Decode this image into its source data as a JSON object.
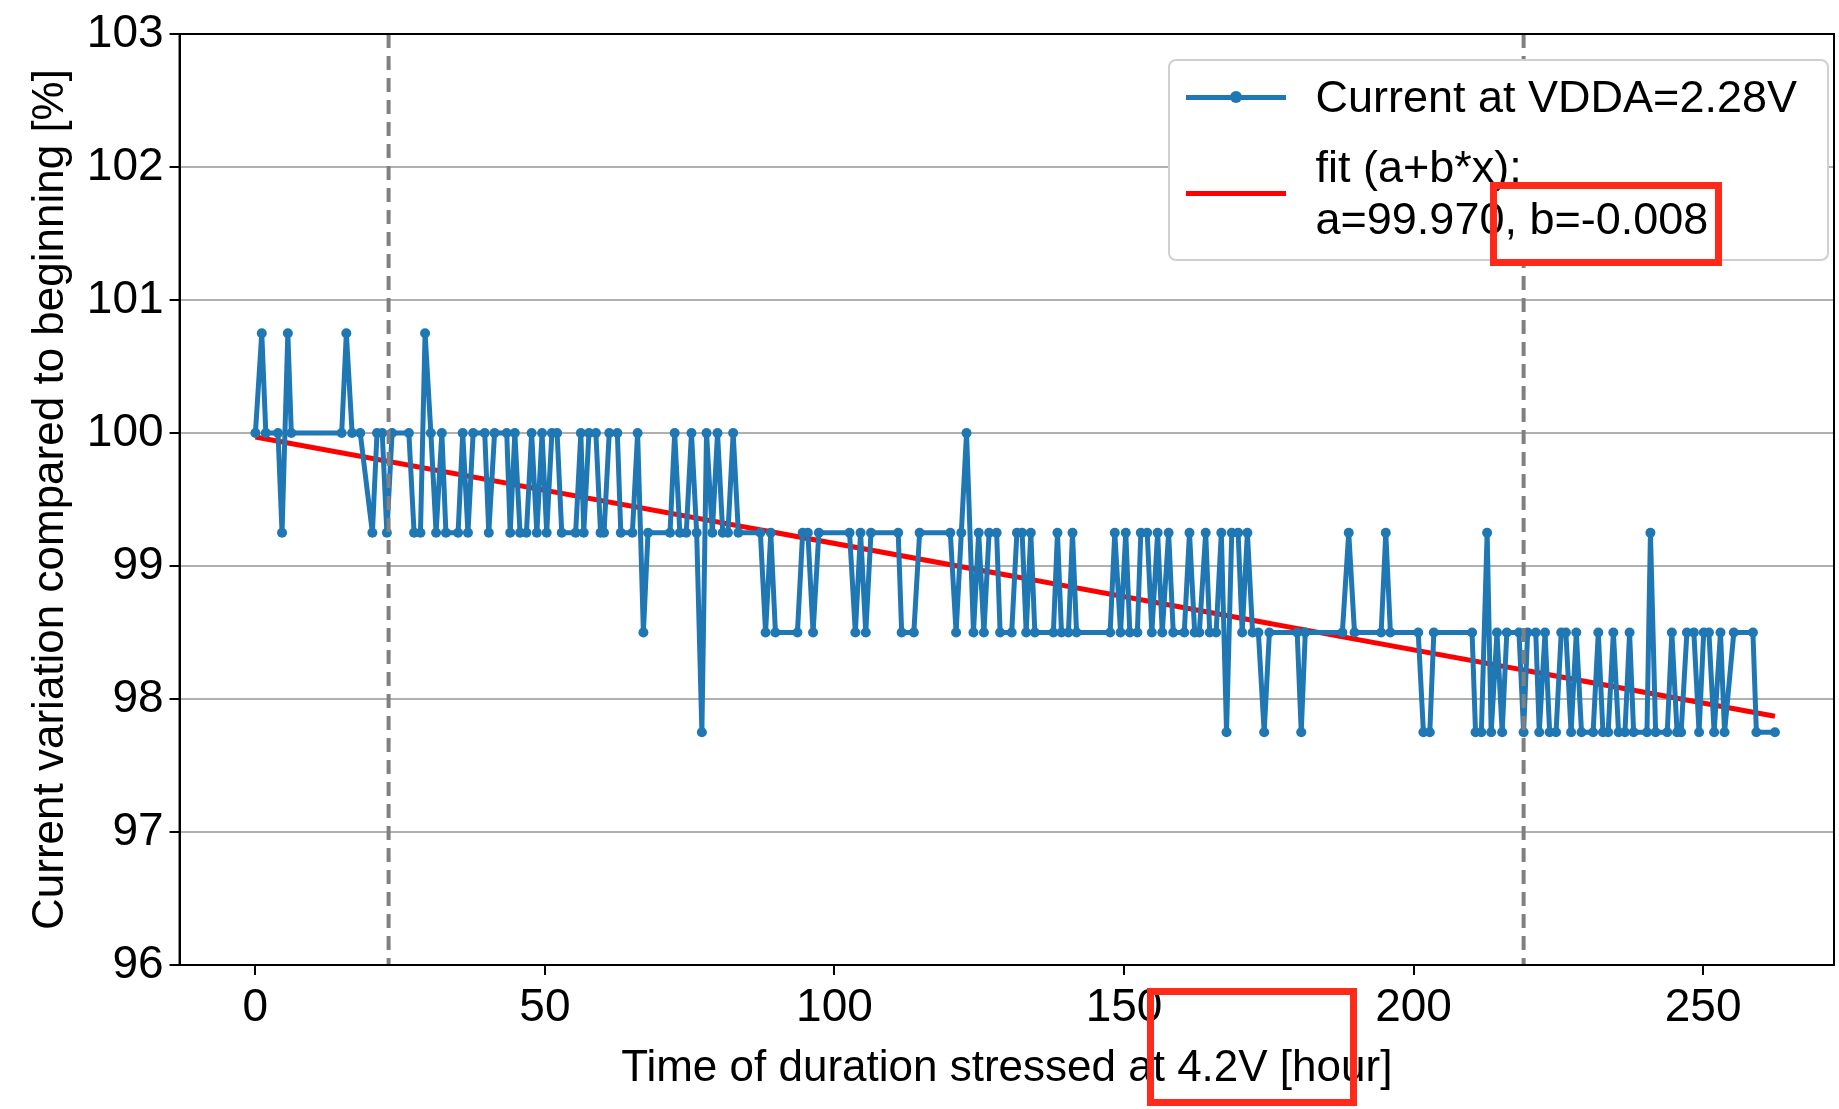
{
  "chart_data": {
    "type": "line",
    "xlabel": "Time of duration stressed at 4.2V [hour]",
    "ylabel": "Current variation compared to beginning [%]",
    "xlim": [
      -13.1,
      272.6
    ],
    "ylim": [
      96,
      103
    ],
    "xticks": [
      0,
      50,
      100,
      150,
      200,
      250
    ],
    "yticks": [
      96,
      97,
      98,
      99,
      100,
      101,
      102,
      103
    ],
    "grid": "y",
    "legend": "top right",
    "ref_lines": [
      {
        "axis": "x",
        "value": 23,
        "color": "#808080",
        "line_style": "dashed"
      },
      {
        "axis": "x",
        "value": 219,
        "color": "#808080",
        "line_style": "dashed"
      }
    ],
    "series": [
      {
        "name": "Current at VDDA=2.28V",
        "color": "#1f77b4",
        "marker": "circle",
        "x": [
          0,
          1.1,
          1.8,
          3.9,
          4.6,
          5.6,
          6.2,
          14.9,
          15.7,
          16.7,
          18.1,
          20.2,
          21.0,
          21.9,
          22.7,
          23.6,
          26.5,
          27.4,
          28.5,
          29.3,
          30.3,
          31.2,
          32.2,
          32.9,
          35.0,
          35.8,
          36.7,
          37.6,
          39.6,
          40.3,
          41.3,
          43.4,
          44.0,
          44.8,
          45.7,
          46.8,
          47.7,
          48.6,
          49.5,
          50.3,
          51.2,
          52.1,
          52.9,
          55.3,
          56.2,
          56.7,
          57.6,
          58.8,
          59.6,
          60.2,
          61.1,
          62.5,
          63.1,
          65.1,
          66.0,
          67.0,
          67.8,
          71.6,
          72.4,
          73.3,
          74.4,
          75.3,
          76.2,
          77.1,
          77.9,
          78.9,
          79.8,
          80.7,
          81.6,
          82.5,
          83.4,
          87.2,
          88.1,
          89.0,
          89.8,
          93.6,
          94.5,
          95.4,
          96.3,
          97.3,
          102.6,
          103.6,
          104.5,
          105.4,
          106.3,
          111.0,
          111.6,
          113.7,
          114.7,
          120.0,
          121.0,
          121.9,
          122.8,
          124.0,
          124.9,
          125.8,
          126.7,
          128.0,
          128.6,
          130.6,
          131.5,
          132.4,
          133.1,
          133.9,
          134.6,
          137.8,
          138.5,
          139.2,
          140.4,
          141.1,
          141.8,
          147.6,
          148.4,
          149.4,
          150.3,
          151.0,
          152.3,
          152.9,
          154.0,
          154.8,
          155.8,
          156.6,
          157.7,
          158.5,
          160.4,
          161.3,
          162.2,
          163.0,
          164.1,
          164.8,
          165.9,
          166.8,
          167.7,
          168.6,
          169.7,
          170.4,
          171.3,
          172.2,
          173.2,
          174.2,
          175.1,
          179.9,
          180.6,
          181.3,
          187.7,
          188.8,
          189.8,
          194.4,
          195.2,
          196.0,
          200.8,
          201.7,
          202.8,
          203.5,
          210.1,
          210.7,
          211.7,
          212.7,
          213.4,
          214.4,
          215.3,
          216.1,
          218.2,
          219.0,
          219.7,
          221.1,
          221.7,
          222.7,
          223.5,
          224.6,
          225.5,
          226.3,
          227.2,
          228.1,
          229.0,
          231.0,
          231.9,
          232.7,
          233.6,
          234.5,
          235.4,
          236.5,
          237.3,
          238.0,
          240.3,
          240.9,
          241.8,
          243.8,
          244.6,
          245.5,
          246.2,
          247.2,
          248.4,
          249.3,
          250.1,
          251.0,
          251.9,
          253.0,
          253.7,
          255.3,
          258.6,
          259.2,
          262.4
        ],
        "values": [
          100,
          100.75,
          100,
          100,
          99.25,
          100.75,
          100,
          100,
          100.75,
          100,
          100,
          99.25,
          100,
          100,
          99.25,
          100,
          100,
          99.25,
          99.25,
          100.75,
          100,
          99.25,
          100,
          99.25,
          99.25,
          100,
          99.25,
          100,
          100,
          99.25,
          100,
          100,
          99.25,
          100,
          99.25,
          99.25,
          100,
          99.25,
          100,
          99.25,
          100,
          100,
          99.25,
          99.25,
          100,
          99.25,
          100,
          100,
          99.25,
          99.25,
          100,
          100,
          99.25,
          99.25,
          100,
          98.5,
          99.25,
          99.25,
          100,
          99.25,
          99.25,
          100,
          99.25,
          97.75,
          100,
          99.25,
          100,
          99.25,
          99.25,
          100,
          99.25,
          99.25,
          98.5,
          99.25,
          98.5,
          98.5,
          99.25,
          99.25,
          98.5,
          99.25,
          99.25,
          98.5,
          99.25,
          98.5,
          99.25,
          99.25,
          98.5,
          98.5,
          99.25,
          99.25,
          98.5,
          99.25,
          100,
          98.5,
          99.25,
          98.5,
          99.25,
          99.25,
          98.5,
          98.5,
          99.25,
          99.25,
          98.5,
          99.25,
          98.5,
          98.5,
          99.25,
          98.5,
          98.5,
          99.25,
          98.5,
          98.5,
          99.25,
          98.5,
          99.25,
          98.5,
          98.5,
          99.25,
          99.25,
          98.5,
          99.25,
          98.5,
          99.25,
          98.5,
          98.5,
          99.25,
          98.5,
          98.5,
          99.25,
          98.5,
          98.5,
          99.25,
          97.75,
          99.25,
          99.25,
          98.5,
          99.25,
          98.5,
          98.5,
          97.75,
          98.5,
          98.5,
          97.75,
          98.5,
          98.5,
          99.25,
          98.5,
          98.5,
          99.25,
          98.5,
          98.5,
          97.75,
          97.75,
          98.5,
          98.5,
          97.75,
          97.75,
          99.25,
          97.75,
          98.5,
          97.75,
          98.5,
          98.5,
          97.75,
          98.5,
          98.5,
          97.75,
          98.5,
          97.75,
          97.75,
          98.5,
          98.5,
          97.75,
          98.5,
          97.75,
          97.75,
          98.5,
          97.75,
          97.75,
          98.5,
          97.75,
          97.75,
          98.5,
          97.75,
          97.75,
          99.25,
          97.75,
          97.75,
          98.5,
          97.75,
          97.75,
          98.5,
          98.5,
          97.75,
          98.5,
          98.5,
          97.75,
          98.5,
          97.75,
          98.5,
          98.5,
          97.75,
          97.75
        ]
      },
      {
        "name": "fit (a+b*x):\na=99.970, b=-0.008",
        "color": "#ff0000",
        "marker": "none",
        "x": [
          0,
          262.4
        ],
        "values": [
          99.97,
          97.87
        ]
      }
    ]
  }
}
